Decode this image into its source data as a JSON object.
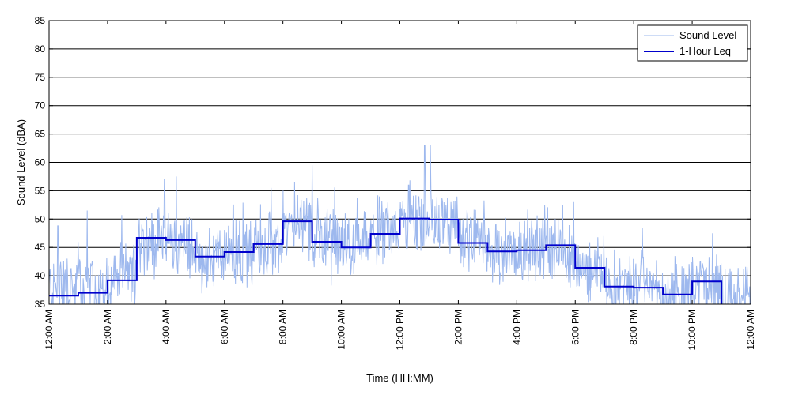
{
  "chart_data": {
    "type": "line",
    "xlabel": "Time (HH:MM)",
    "ylabel": "Sound Level (dBA)",
    "ylim": [
      35,
      85
    ],
    "xlim": [
      0,
      24
    ],
    "y_ticks": [
      35,
      40,
      45,
      50,
      55,
      60,
      65,
      70,
      75,
      80,
      85
    ],
    "x_ticks": [
      0,
      2,
      4,
      6,
      8,
      10,
      12,
      14,
      16,
      18,
      20,
      22,
      24
    ],
    "x_tick_labels": [
      "12:00 AM",
      "2:00 AM",
      "4:00 AM",
      "6:00 AM",
      "8:00 AM",
      "10:00 AM",
      "12:00 PM",
      "2:00 PM",
      "4:00 PM",
      "6:00 PM",
      "8:00 PM",
      "10:00 PM",
      "12:00 AM"
    ],
    "grid": "horizontal",
    "legend_position": "top-right",
    "series": [
      {
        "name": "Sound Level",
        "color": "#9db8ee",
        "style": "thin line, high-frequency fluctuation around hourly mean",
        "hourly_mean": [
          38,
          38,
          39,
          46,
          46,
          43,
          44,
          45,
          49,
          46,
          45,
          47,
          50,
          50,
          46,
          44,
          45,
          45,
          41,
          38,
          38,
          37,
          39,
          36
        ],
        "peaks": [
          {
            "x": 0.3,
            "y": 48.8
          },
          {
            "x": 1.3,
            "y": 51.5
          },
          {
            "x": 3.95,
            "y": 57
          },
          {
            "x": 4.35,
            "y": 57.5
          },
          {
            "x": 6.3,
            "y": 52.5
          },
          {
            "x": 7.6,
            "y": 55.5
          },
          {
            "x": 8.4,
            "y": 56.5
          },
          {
            "x": 9.0,
            "y": 59.5
          },
          {
            "x": 12.3,
            "y": 56
          },
          {
            "x": 12.85,
            "y": 63
          },
          {
            "x": 13.05,
            "y": 63
          },
          {
            "x": 16.95,
            "y": 52.5
          },
          {
            "x": 17.05,
            "y": 52
          },
          {
            "x": 17.95,
            "y": 53
          },
          {
            "x": 20.3,
            "y": 48.5
          },
          {
            "x": 22.7,
            "y": 47.5
          },
          {
            "x": 23.7,
            "y": 36.5
          }
        ]
      },
      {
        "name": "1-Hour Leq",
        "color": "#0000cc",
        "style": "stepped line",
        "hour_start": [
          0,
          1,
          2,
          3,
          4,
          5,
          6,
          7,
          8,
          9,
          10,
          11,
          12,
          13,
          14,
          15,
          16,
          17,
          18,
          19,
          20,
          21,
          22
        ],
        "values": [
          36.5,
          37.0,
          39.2,
          46.7,
          46.3,
          43.4,
          44.2,
          45.6,
          49.6,
          46.0,
          45.0,
          47.4,
          50.1,
          49.9,
          45.8,
          44.3,
          44.5,
          45.4,
          41.4,
          38.1,
          37.9,
          36.7,
          39.0
        ],
        "end_x": 23
      }
    ]
  }
}
